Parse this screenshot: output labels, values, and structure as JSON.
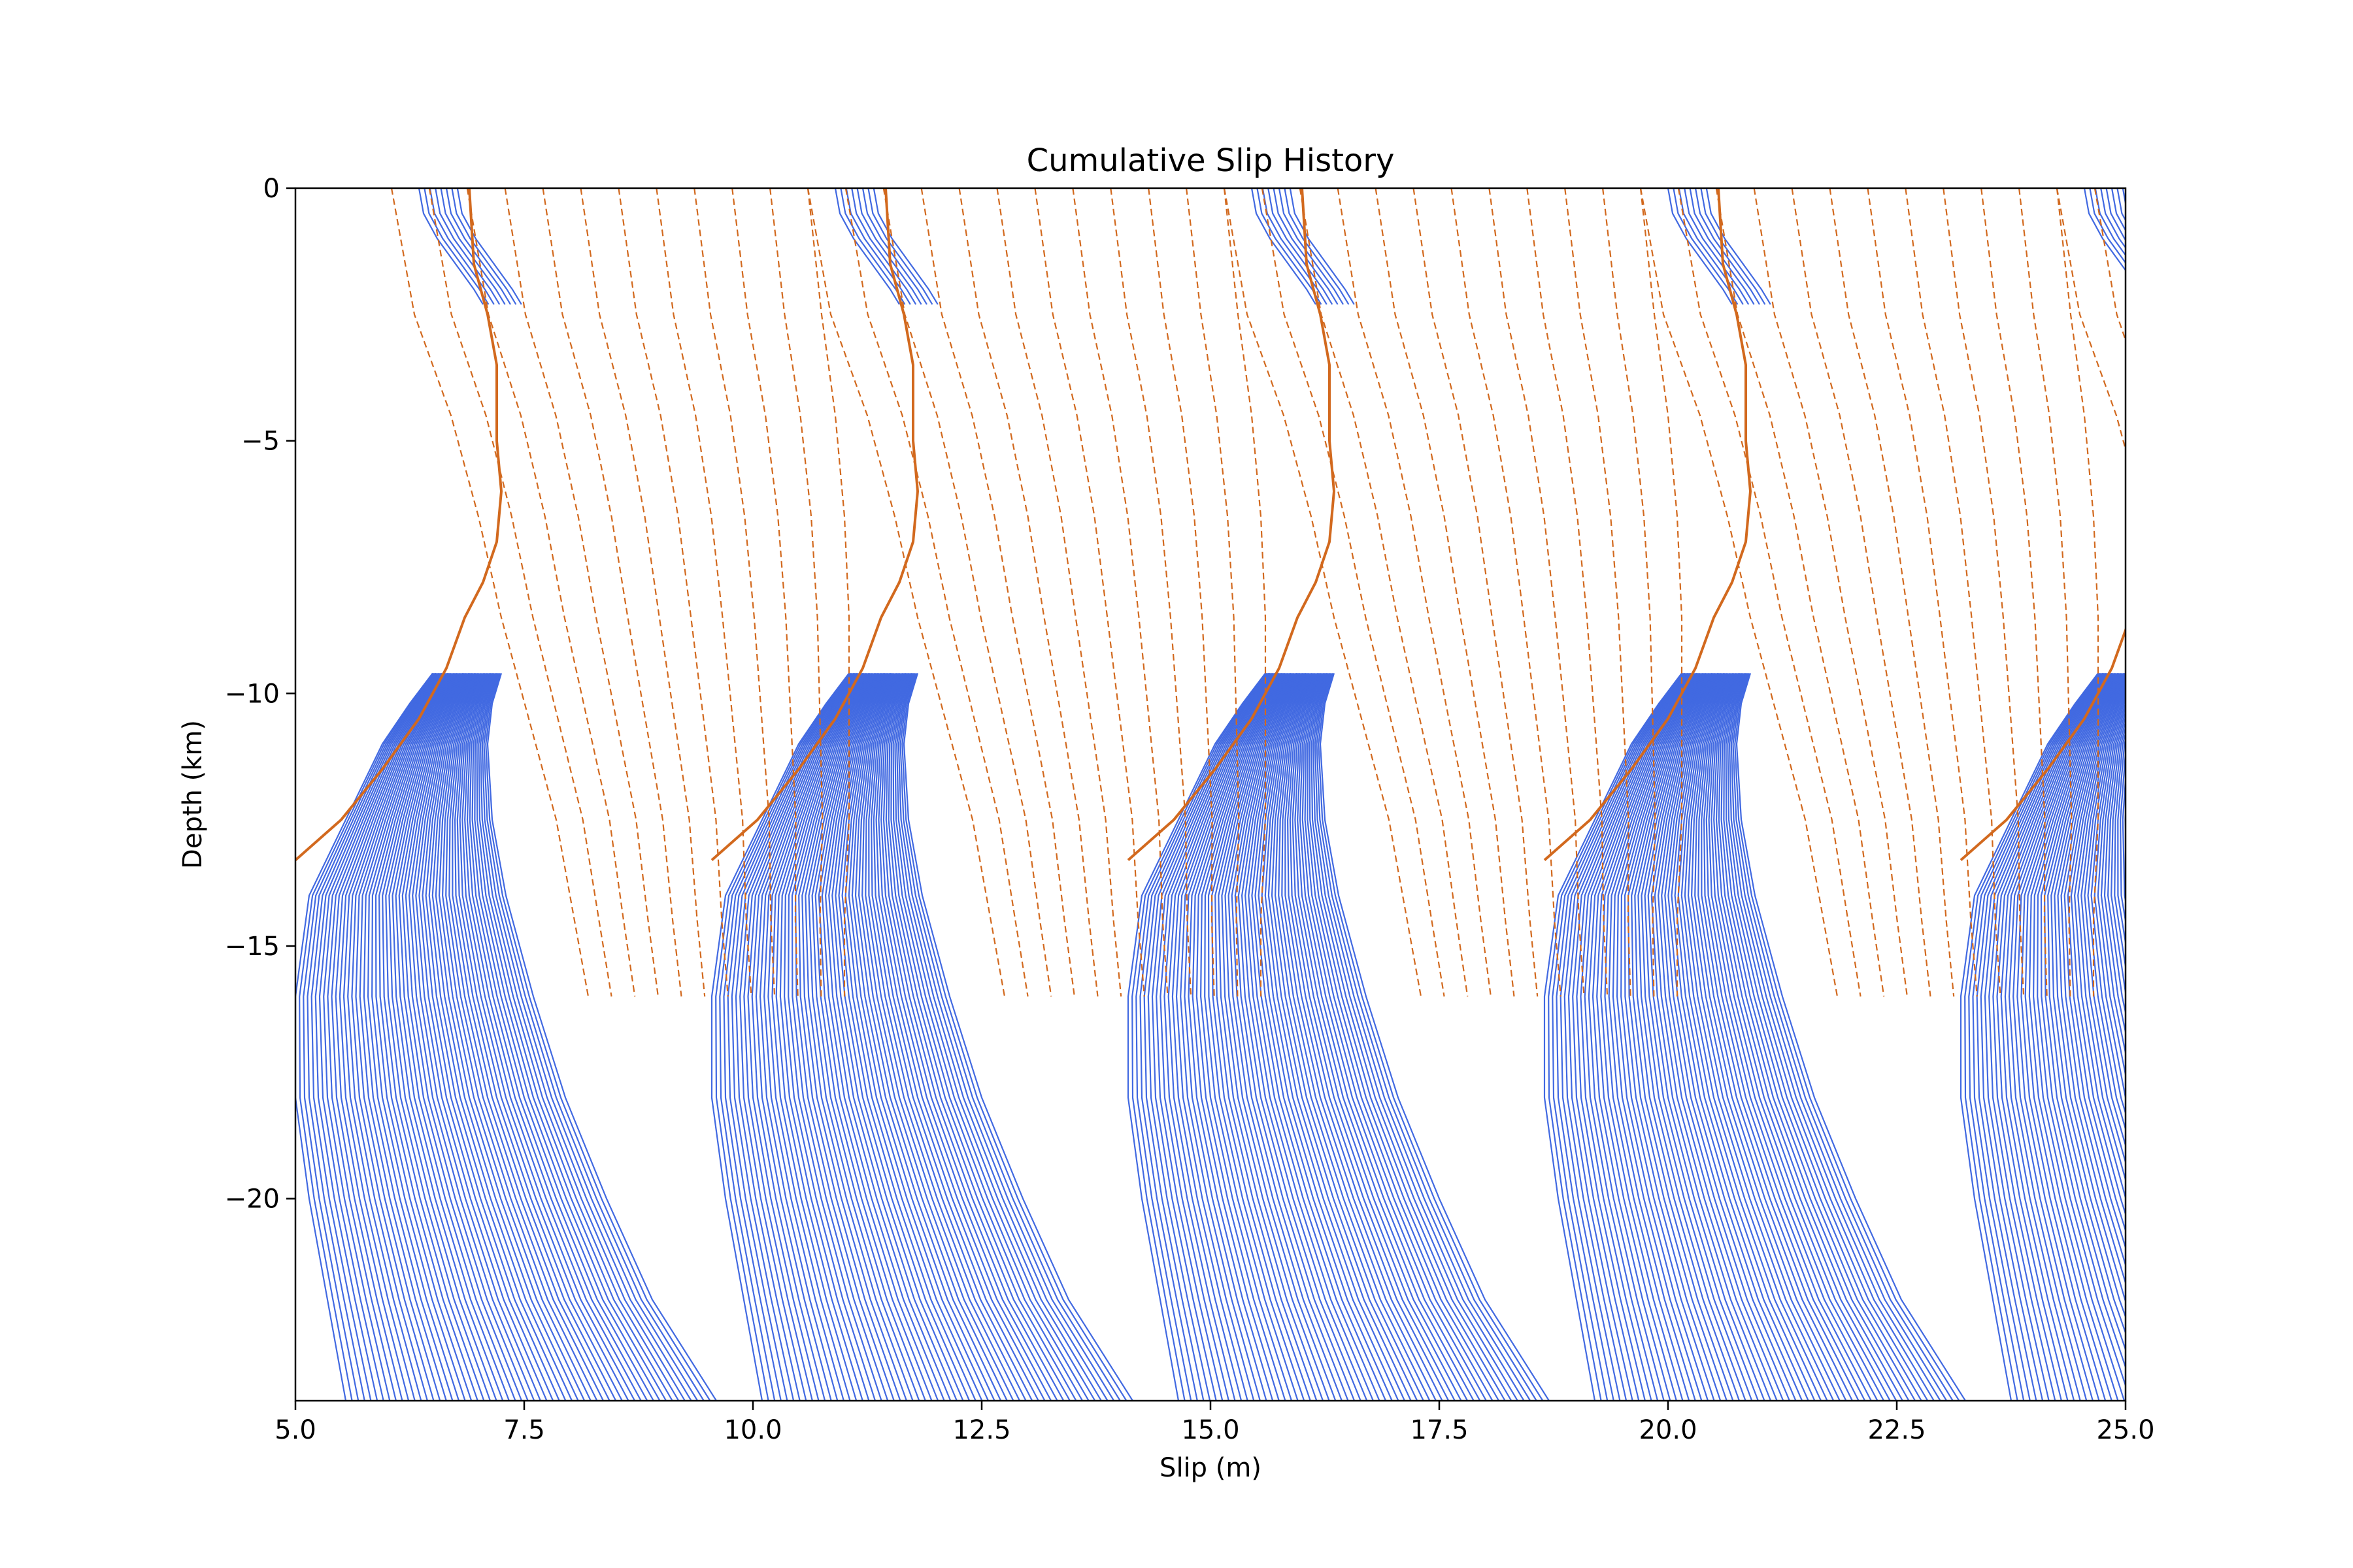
{
  "chart_data": {
    "type": "line",
    "title": "Cumulative Slip History",
    "xlabel": "Slip (m)",
    "ylabel": "Depth (km)",
    "xlim": [
      5.0,
      25.0
    ],
    "ylim": [
      -24,
      0
    ],
    "xticks": [
      5.0,
      7.5,
      10.0,
      12.5,
      15.0,
      17.5,
      20.0,
      22.5,
      25.0
    ],
    "xtick_labels": [
      "5.0",
      "7.5",
      "10.0",
      "12.5",
      "15.0",
      "17.5",
      "20.0",
      "22.5",
      "25.0"
    ],
    "yticks": [
      0,
      -5,
      -10,
      -15,
      -20
    ],
    "ytick_labels": [
      "0",
      "−5",
      "−10",
      "−15",
      "−20"
    ],
    "grid": false,
    "legend": "none",
    "earthquake_cycle_offsets_m": [
      0.0,
      4.55,
      9.1,
      13.65,
      18.2
    ],
    "interseismic_slip_contours": {
      "style": "solid",
      "color": "#4169e1",
      "count_per_cycle": 60,
      "depth_profile_km": [
        -24,
        -22,
        -20,
        -18,
        -16,
        -14,
        -12.5,
        -11,
        -10.2,
        -9.6
      ],
      "first_contour_slip_m": [
        5.55,
        5.35,
        5.15,
        5.0,
        5.0,
        5.15,
        5.55,
        5.95,
        6.25,
        6.5
      ],
      "last_contour_slip_m": [
        9.6,
        8.9,
        8.4,
        7.95,
        7.6,
        7.3,
        7.15,
        7.1,
        7.15,
        7.25
      ]
    },
    "near_surface_slip_contours": {
      "style": "solid",
      "color": "#4169e1",
      "depth_profile_km": [
        0,
        -0.5,
        -1.0,
        -1.5,
        -2.0,
        -2.3
      ],
      "slip_m": [
        6.35,
        6.4,
        6.55,
        6.75,
        6.95,
        7.05
      ]
    },
    "coseismic_slip_contours": {
      "style": "dashed",
      "color": "#d2691e",
      "count_per_cycle": 12,
      "depth_profile_km": [
        0,
        -2.5,
        -4.5,
        -6.5,
        -8.5,
        -10.5,
        -12.5,
        -14.5,
        -16.0
      ],
      "first_contour_slip_m": [
        6.05,
        6.3,
        6.7,
        7.0,
        7.25,
        7.55,
        7.85,
        8.05,
        8.2
      ],
      "last_contour_slip_m": [
        10.6,
        10.75,
        10.9,
        11.0,
        11.05,
        11.05,
        11.05,
        11.0,
        11.0
      ]
    },
    "rupture_front": {
      "style": "solid",
      "color": "#d2691e",
      "depth_km": [
        0,
        -1.5,
        -2.5,
        -3.5,
        -5.0,
        -6.0,
        -7.0,
        -7.8,
        -8.5,
        -9.5,
        -10.5,
        -11.5,
        -12.5,
        -13.3
      ],
      "slip_m": [
        6.9,
        6.95,
        7.1,
        7.2,
        7.2,
        7.25,
        7.2,
        7.05,
        6.85,
        6.65,
        6.35,
        5.95,
        5.5,
        5.0
      ]
    }
  }
}
